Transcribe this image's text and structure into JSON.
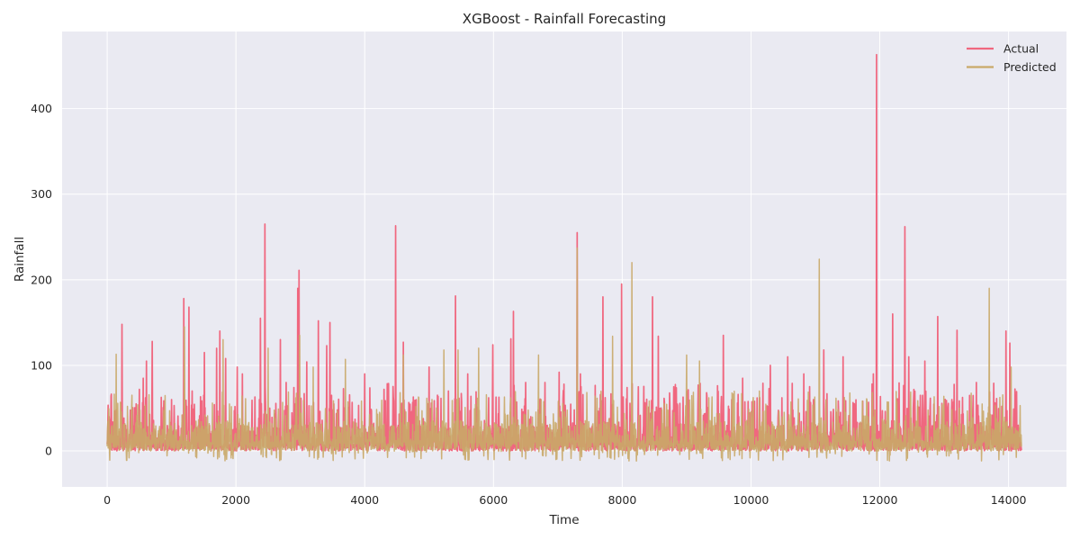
{
  "chart_data": {
    "type": "line",
    "title": "XGBoost - Rainfall Forecasting",
    "xlabel": "Time",
    "ylabel": "Rainfall",
    "xlim": [
      -700,
      14900
    ],
    "ylim": [
      -42,
      490
    ],
    "x_ticks": [
      0,
      2000,
      4000,
      6000,
      8000,
      10000,
      12000,
      14000
    ],
    "y_ticks": [
      0,
      100,
      200,
      300,
      400
    ],
    "grid": true,
    "legend_position": "top-right",
    "n_points": 14200,
    "series": [
      {
        "name": "Actual",
        "color": "#f0677f",
        "peaks": [
          [
            30,
            40
          ],
          [
            140,
            48
          ],
          [
            230,
            148
          ],
          [
            500,
            72
          ],
          [
            560,
            85
          ],
          [
            610,
            105
          ],
          [
            700,
            128
          ],
          [
            1000,
            60
          ],
          [
            1190,
            178
          ],
          [
            1270,
            168
          ],
          [
            1320,
            70
          ],
          [
            1510,
            115
          ],
          [
            1700,
            120
          ],
          [
            1750,
            140
          ],
          [
            1840,
            108
          ],
          [
            2020,
            98
          ],
          [
            2100,
            90
          ],
          [
            2380,
            155
          ],
          [
            2450,
            265
          ],
          [
            2690,
            130
          ],
          [
            2780,
            80
          ],
          [
            2960,
            190
          ],
          [
            2980,
            211
          ],
          [
            3100,
            104
          ],
          [
            3280,
            152
          ],
          [
            3410,
            123
          ],
          [
            3460,
            150
          ],
          [
            3520,
            55
          ],
          [
            4000,
            90
          ],
          [
            4300,
            72
          ],
          [
            4480,
            263
          ],
          [
            4600,
            127
          ],
          [
            5000,
            98
          ],
          [
            5300,
            70
          ],
          [
            5410,
            181
          ],
          [
            5600,
            90
          ],
          [
            5990,
            124
          ],
          [
            6270,
            131
          ],
          [
            6310,
            163
          ],
          [
            6500,
            80
          ],
          [
            6800,
            80
          ],
          [
            7020,
            92
          ],
          [
            7300,
            255
          ],
          [
            7350,
            90
          ],
          [
            7700,
            180
          ],
          [
            7990,
            195
          ],
          [
            8250,
            75
          ],
          [
            8470,
            180
          ],
          [
            8560,
            134
          ],
          [
            8800,
            75
          ],
          [
            9000,
            70
          ],
          [
            9310,
            68
          ],
          [
            9570,
            135
          ],
          [
            9700,
            60
          ],
          [
            9870,
            85
          ],
          [
            10300,
            100
          ],
          [
            10570,
            110
          ],
          [
            10820,
            90
          ],
          [
            11130,
            118
          ],
          [
            11430,
            110
          ],
          [
            11900,
            90
          ],
          [
            11950,
            463
          ],
          [
            12200,
            160
          ],
          [
            12390,
            262
          ],
          [
            12450,
            110
          ],
          [
            12700,
            105
          ],
          [
            12900,
            157
          ],
          [
            13120,
            60
          ],
          [
            13200,
            141
          ],
          [
            13500,
            80
          ],
          [
            13770,
            79
          ],
          [
            13960,
            140
          ],
          [
            14020,
            126
          ],
          [
            14150,
            30
          ]
        ]
      },
      {
        "name": "Predicted",
        "color": "#c9a968",
        "peaks": [
          [
            140,
            113
          ],
          [
            1200,
            145
          ],
          [
            1800,
            130
          ],
          [
            2500,
            120
          ],
          [
            2990,
            135
          ],
          [
            3200,
            98
          ],
          [
            3700,
            107
          ],
          [
            4600,
            112
          ],
          [
            5230,
            118
          ],
          [
            5450,
            118
          ],
          [
            5770,
            120
          ],
          [
            6700,
            112
          ],
          [
            7300,
            237
          ],
          [
            7850,
            134
          ],
          [
            8150,
            220
          ],
          [
            9000,
            112
          ],
          [
            9200,
            105
          ],
          [
            11060,
            224
          ],
          [
            11800,
            60
          ],
          [
            13700,
            190
          ],
          [
            14040,
            98
          ]
        ]
      }
    ]
  }
}
